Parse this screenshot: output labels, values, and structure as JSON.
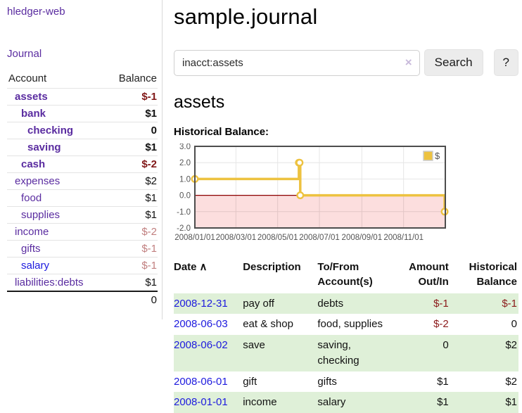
{
  "colors": {
    "link_purple": "#5a2ca0",
    "link_blue": "#1d1ade",
    "negative_strong": "#801717",
    "negative_soft": "#c17f7f",
    "row_stripe_green": "#dff0d8",
    "chart_line_gold": "#edc240",
    "chart_negative_region": "#fcdede",
    "chart_zero_line": "#8b0000"
  },
  "sidebar": {
    "brand": "hledger-web",
    "journal_label": "Journal",
    "accounts": {
      "header_account": "Account",
      "header_balance": "Balance",
      "rows": [
        {
          "name": "assets",
          "indent": 1,
          "bold": true,
          "link": "purple",
          "balance": "$-1",
          "balance_class": "neg-strong"
        },
        {
          "name": "bank",
          "indent": 2,
          "bold": true,
          "link": "purple",
          "balance": "$1",
          "balance_class": "plain"
        },
        {
          "name": "checking",
          "indent": 3,
          "bold": true,
          "link": "purple",
          "balance": "0",
          "balance_class": "plain"
        },
        {
          "name": "saving",
          "indent": 3,
          "bold": true,
          "link": "purple",
          "balance": "$1",
          "balance_class": "plain"
        },
        {
          "name": "cash",
          "indent": 2,
          "bold": true,
          "link": "purple",
          "balance": "$-2",
          "balance_class": "neg-strong"
        },
        {
          "name": "expenses",
          "indent": 1,
          "bold": false,
          "link": "purple",
          "balance": "$2",
          "balance_class": "plain"
        },
        {
          "name": "food",
          "indent": 2,
          "bold": false,
          "link": "purple",
          "balance": "$1",
          "balance_class": "plain"
        },
        {
          "name": "supplies",
          "indent": 2,
          "bold": false,
          "link": "purple",
          "balance": "$1",
          "balance_class": "plain"
        },
        {
          "name": "income",
          "indent": 1,
          "bold": false,
          "link": "purple",
          "balance": "$-2",
          "balance_class": "neg-soft"
        },
        {
          "name": "gifts",
          "indent": 2,
          "bold": false,
          "link": "purple",
          "balance": "$-1",
          "balance_class": "neg-soft"
        },
        {
          "name": "salary",
          "indent": 2,
          "bold": false,
          "link": "blue",
          "balance": "$-1",
          "balance_class": "neg-soft"
        },
        {
          "name": "liabilities:debts",
          "indent": 1,
          "bold": false,
          "link": "purple",
          "balance": "$1",
          "balance_class": "plain"
        }
      ],
      "total": "0"
    }
  },
  "main": {
    "title": "sample.journal",
    "search": {
      "value": "inacct:assets",
      "clear_icon": "×",
      "search_button": "Search",
      "help_button": "?"
    },
    "account_heading": "assets",
    "chart_heading": "Historical Balance:",
    "chart_data": {
      "type": "line",
      "step": true,
      "title": "Historical Balance",
      "legend": "$",
      "legend_position": "top-right",
      "x_start": "2008-01-01",
      "x_range_days": 366,
      "ylim": [
        -2,
        3
      ],
      "y_ticks": [
        "3.0",
        "2.0",
        "1.0",
        "0.0",
        "-1.0",
        "-2.0"
      ],
      "x_ticks": [
        "2008/01/01",
        "2008/03/01",
        "2008/05/01",
        "2008/07/01",
        "2008/09/01",
        "2008/11/01"
      ],
      "grid": true,
      "series": [
        {
          "name": "$",
          "color": "#edc240",
          "points": [
            [
              "2008-01-01",
              1
            ],
            [
              "2008-06-01",
              2
            ],
            [
              "2008-06-02",
              2
            ],
            [
              "2008-06-03",
              0
            ],
            [
              "2008-12-31",
              -1
            ]
          ]
        }
      ]
    },
    "register": {
      "headers": {
        "date": "Date",
        "sort_icon": "∧",
        "description": "Description",
        "tofrom": "To/From Account(s)",
        "amount": "Amount Out/In",
        "balance": "Historical Balance"
      },
      "rows": [
        {
          "date": "2008-12-31",
          "description": "pay off",
          "accounts": "debts",
          "amount": "$-1",
          "balance": "$-1"
        },
        {
          "date": "2008-06-03",
          "description": "eat & shop",
          "accounts": "food, supplies",
          "amount": "$-2",
          "balance": "0"
        },
        {
          "date": "2008-06-02",
          "description": "save",
          "accounts": "saving, checking",
          "amount": "0",
          "balance": "$2"
        },
        {
          "date": "2008-06-01",
          "description": "gift",
          "accounts": "gifts",
          "amount": "$1",
          "balance": "$2"
        },
        {
          "date": "2008-01-01",
          "description": "income",
          "accounts": "salary",
          "amount": "$1",
          "balance": "$1"
        }
      ]
    }
  }
}
